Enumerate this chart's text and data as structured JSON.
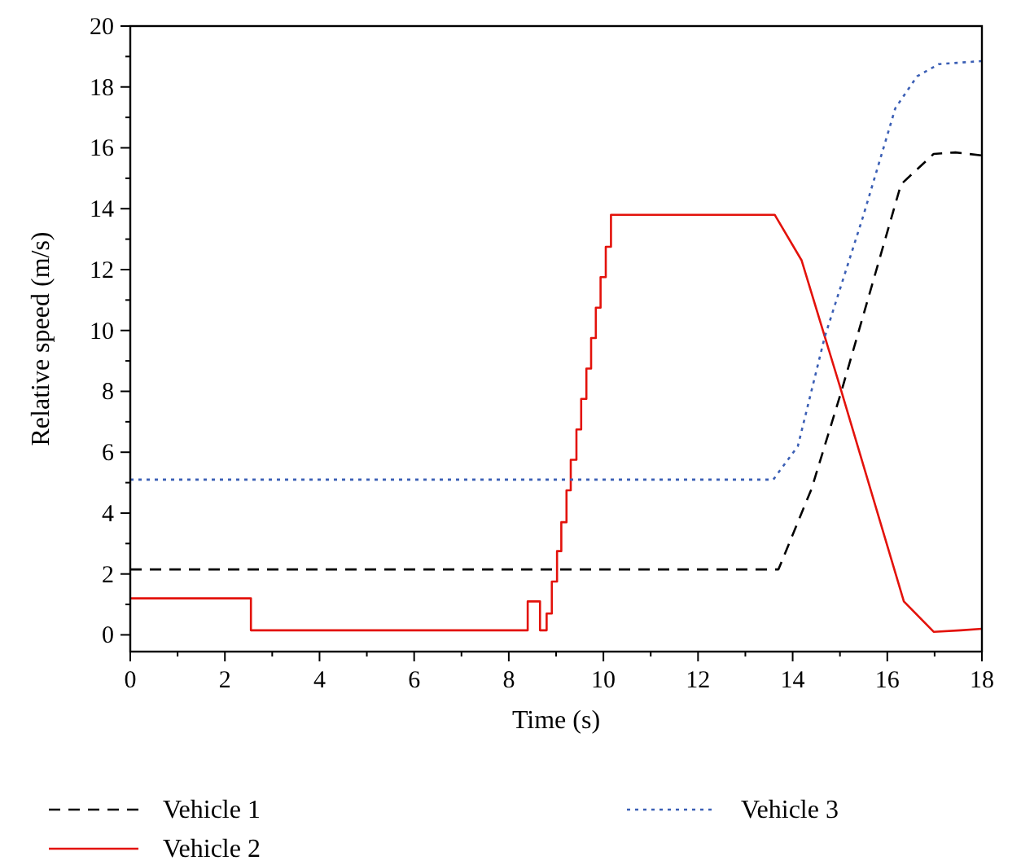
{
  "chart_data": {
    "type": "line",
    "xlabel": "Time (s)",
    "ylabel": "Relative speed (m/s)",
    "xlim": [
      0,
      18
    ],
    "ylim": [
      -0.55,
      20
    ],
    "xticks": [
      0,
      2,
      4,
      6,
      8,
      10,
      12,
      14,
      16,
      18
    ],
    "yticks": [
      0,
      2,
      4,
      6,
      8,
      10,
      12,
      14,
      16,
      18,
      20
    ],
    "grid": false,
    "legend": "bottom",
    "marker": "none",
    "series": [
      {
        "name": "Vehicle 1",
        "color": "#000000",
        "line_style": "dashed",
        "x": [
          0,
          13.7,
          14.4,
          15.03,
          16.29,
          16.98,
          17.44,
          18
        ],
        "values": [
          2.15,
          2.15,
          4.8,
          8.0,
          14.8,
          15.8,
          15.85,
          15.75
        ]
      },
      {
        "name": "Vehicle 2",
        "color": "#e3120b",
        "line_style": "solid",
        "x": [
          0,
          2.55,
          2.55,
          8.4,
          8.4,
          8.66,
          8.66,
          8.8,
          8.8,
          8.91,
          8.91,
          9.02,
          9.02,
          9.11,
          9.11,
          9.22,
          9.22,
          9.31,
          9.31,
          9.43,
          9.43,
          9.53,
          9.53,
          9.64,
          9.64,
          9.74,
          9.74,
          9.84,
          9.84,
          9.94,
          9.94,
          10.05,
          10.05,
          10.16,
          10.16,
          13.62,
          14.19,
          15.03,
          16.35,
          16.98,
          17.55,
          18
        ],
        "values": [
          1.2,
          1.2,
          0.15,
          0.15,
          1.1,
          1.1,
          0.15,
          0.15,
          0.7,
          0.7,
          1.75,
          1.75,
          2.75,
          2.75,
          3.7,
          3.7,
          4.75,
          4.75,
          5.75,
          5.75,
          6.75,
          6.75,
          7.75,
          7.75,
          8.75,
          8.75,
          9.75,
          9.75,
          10.75,
          10.75,
          11.75,
          11.75,
          12.75,
          12.75,
          13.8,
          13.8,
          12.3,
          8.0,
          1.1,
          0.1,
          0.15,
          0.2
        ]
      },
      {
        "name": "Vehicle 3",
        "color": "#3b5fb5",
        "line_style": "dotted",
        "x": [
          0,
          13.59,
          14.11,
          14.68,
          15.48,
          16.17,
          16.63,
          17.09,
          18
        ],
        "values": [
          5.1,
          5.1,
          6.2,
          9.8,
          13.7,
          17.3,
          18.35,
          18.75,
          18.85
        ]
      }
    ]
  }
}
